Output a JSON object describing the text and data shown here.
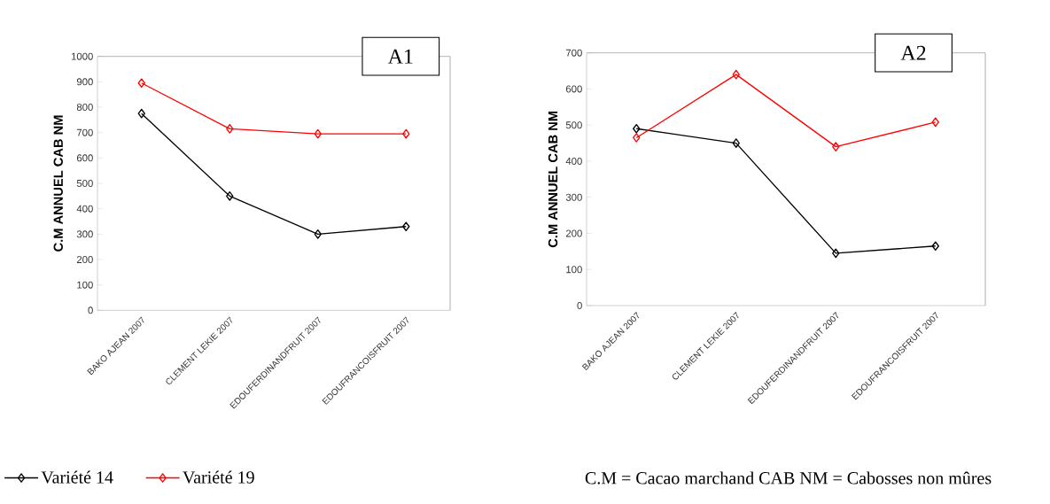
{
  "chart_data": [
    {
      "type": "line",
      "title": "A1",
      "ylabel": "C.M ANNUEL CAB NM",
      "categories": [
        "BAKO AJEAN 2007",
        "CLEMENT LEKIE 2007",
        "EDOUFERDINANDFRUIT 2007",
        "EDOUFRANCOISFRUIT 2007"
      ],
      "ylim": [
        0,
        1000
      ],
      "yticks": [
        0,
        100,
        200,
        300,
        400,
        500,
        600,
        700,
        800,
        900,
        1000
      ],
      "marker": "diamond",
      "legend": "bottom",
      "series": [
        {
          "name": "Variété 14",
          "color": "#000000",
          "values": [
            775,
            450,
            300,
            330
          ]
        },
        {
          "name": "Variété 19",
          "color": "#ff0000",
          "values": [
            895,
            715,
            695,
            695
          ]
        }
      ],
      "annotations": [
        "C.M = Cacao marchand   CAB NM = Cabosses non mûres"
      ]
    },
    {
      "type": "line",
      "title": "A2",
      "ylabel": "C.M ANNUEL CAB NM",
      "categories": [
        "BAKO AJEAN 2007",
        "CLEMENT LEKIE 2007",
        "EDOUFERDINANDFRUIT 2007",
        "EDOUFRANCOISFRUIT 2007"
      ],
      "ylim": [
        0,
        700
      ],
      "yticks": [
        0,
        100,
        200,
        300,
        400,
        500,
        600,
        700
      ],
      "marker": "diamond",
      "series": [
        {
          "color": "#000000",
          "values": [
            490,
            450,
            145,
            165
          ]
        },
        {
          "color": "#ff0000",
          "values": [
            465,
            640,
            440,
            508
          ]
        }
      ]
    }
  ]
}
